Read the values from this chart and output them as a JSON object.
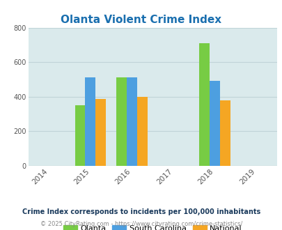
{
  "title": "Olanta Violent Crime Index",
  "title_color": "#1a6faf",
  "years": [
    2014,
    2015,
    2016,
    2017,
    2018,
    2019
  ],
  "data_years": [
    2015,
    2016,
    2018
  ],
  "olanta": [
    350,
    510,
    710
  ],
  "south_carolina": [
    510,
    510,
    490
  ],
  "national": [
    385,
    400,
    380
  ],
  "olanta_color": "#77cc44",
  "sc_color": "#4d9fe0",
  "national_color": "#f5a623",
  "bg_color": "#daeaec",
  "ylim": [
    0,
    800
  ],
  "yticks": [
    0,
    200,
    400,
    600,
    800
  ],
  "bar_width": 0.25,
  "legend_labels": [
    "Olanta",
    "South Carolina",
    "National"
  ],
  "footnote1": "Crime Index corresponds to incidents per 100,000 inhabitants",
  "footnote2": "© 2025 CityRating.com - https://www.cityrating.com/crime-statistics/",
  "footnote1_color": "#1a3a5c",
  "footnote2_color": "#888888",
  "grid_color": "#c0d4d8"
}
